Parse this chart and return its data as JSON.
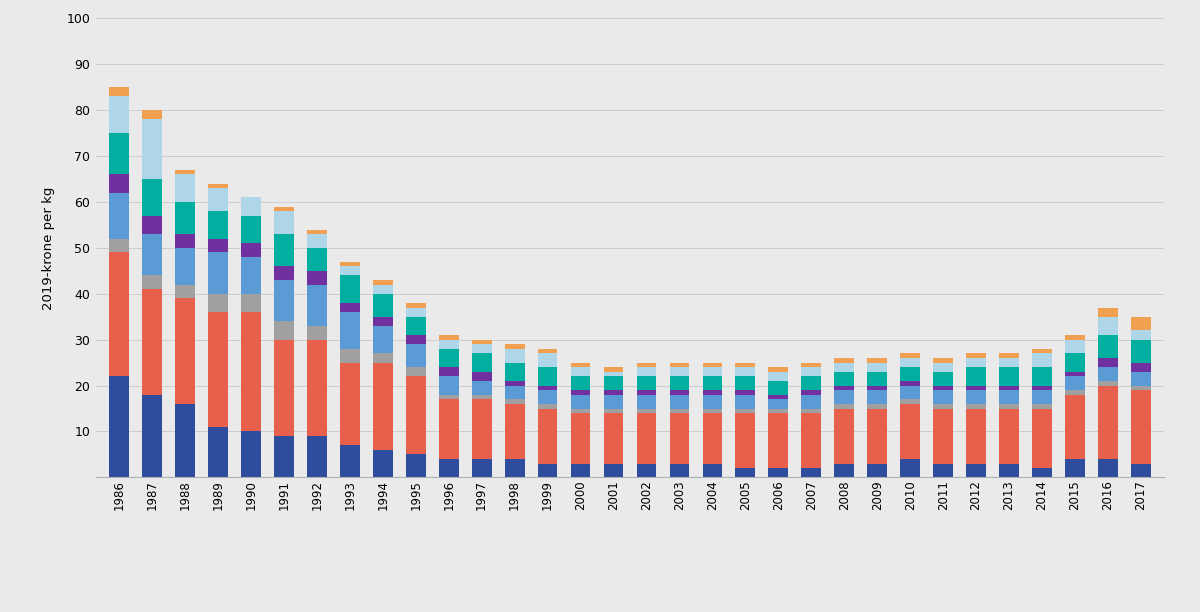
{
  "years": [
    1986,
    1987,
    1988,
    1989,
    1990,
    1991,
    1992,
    1993,
    1994,
    1995,
    1996,
    1997,
    1998,
    1999,
    2000,
    2001,
    2002,
    2003,
    2004,
    2005,
    2006,
    2007,
    2008,
    2009,
    2010,
    2011,
    2012,
    2013,
    2014,
    2015,
    2016,
    2017
  ],
  "series": {
    "Smolt": [
      22,
      18,
      16,
      11,
      10,
      9,
      9,
      7,
      6,
      5,
      4,
      4,
      4,
      3,
      3,
      3,
      3,
      3,
      3,
      2,
      2,
      2,
      3,
      3,
      4,
      3,
      3,
      3,
      2,
      4,
      4,
      3
    ],
    "Fôr": [
      27,
      23,
      23,
      25,
      26,
      21,
      21,
      18,
      19,
      17,
      13,
      13,
      12,
      12,
      11,
      11,
      11,
      11,
      11,
      12,
      12,
      12,
      12,
      12,
      12,
      12,
      12,
      12,
      13,
      14,
      16,
      16
    ],
    "Forsikring": [
      3,
      3,
      3,
      4,
      4,
      4,
      3,
      3,
      2,
      2,
      1,
      1,
      1,
      1,
      1,
      1,
      1,
      1,
      1,
      1,
      1,
      1,
      1,
      1,
      1,
      1,
      1,
      1,
      1,
      1,
      1,
      1
    ],
    "Lønn": [
      10,
      9,
      8,
      9,
      8,
      9,
      9,
      8,
      6,
      5,
      4,
      3,
      3,
      3,
      3,
      3,
      3,
      3,
      3,
      3,
      2,
      3,
      3,
      3,
      3,
      3,
      3,
      3,
      3,
      3,
      3,
      3
    ],
    "Avskrivning": [
      4,
      4,
      3,
      3,
      3,
      3,
      3,
      2,
      2,
      2,
      2,
      2,
      1,
      1,
      1,
      1,
      1,
      1,
      1,
      1,
      1,
      1,
      1,
      1,
      1,
      1,
      1,
      1,
      1,
      1,
      2,
      2
    ],
    "Annen driftskostnad": [
      9,
      8,
      7,
      6,
      6,
      7,
      5,
      6,
      5,
      4,
      4,
      4,
      4,
      4,
      3,
      3,
      3,
      3,
      3,
      3,
      3,
      3,
      3,
      3,
      3,
      3,
      4,
      4,
      4,
      4,
      5,
      5
    ],
    "Netto finanskostnad": [
      8,
      13,
      6,
      5,
      4,
      5,
      3,
      2,
      2,
      2,
      2,
      2,
      3,
      3,
      2,
      1,
      2,
      2,
      2,
      2,
      2,
      2,
      2,
      2,
      2,
      2,
      2,
      2,
      3,
      3,
      4,
      2
    ],
    "Slakt": [
      2,
      2,
      1,
      1,
      0,
      1,
      1,
      1,
      1,
      1,
      1,
      1,
      1,
      1,
      1,
      1,
      1,
      1,
      1,
      1,
      1,
      1,
      1,
      1,
      1,
      1,
      1,
      1,
      1,
      1,
      2,
      3
    ]
  },
  "colors": {
    "Smolt": "#2E4D9E",
    "Fôr": "#E8604C",
    "Forsikring": "#A0A0A0",
    "Lønn": "#5B9BD5",
    "Avskrivning": "#7030A0",
    "Annen driftskostnad": "#00AFA0",
    "Netto finanskostnad": "#AED6E8",
    "Slakt": "#F0A050"
  },
  "ylabel": "2019-krone per kg",
  "ylim": [
    0,
    100
  ],
  "yticks": [
    0,
    10,
    20,
    30,
    40,
    50,
    60,
    70,
    80,
    90,
    100
  ],
  "background_color": "#EAEAEA",
  "plot_background": "#EAEAEA",
  "bar_width": 0.6
}
